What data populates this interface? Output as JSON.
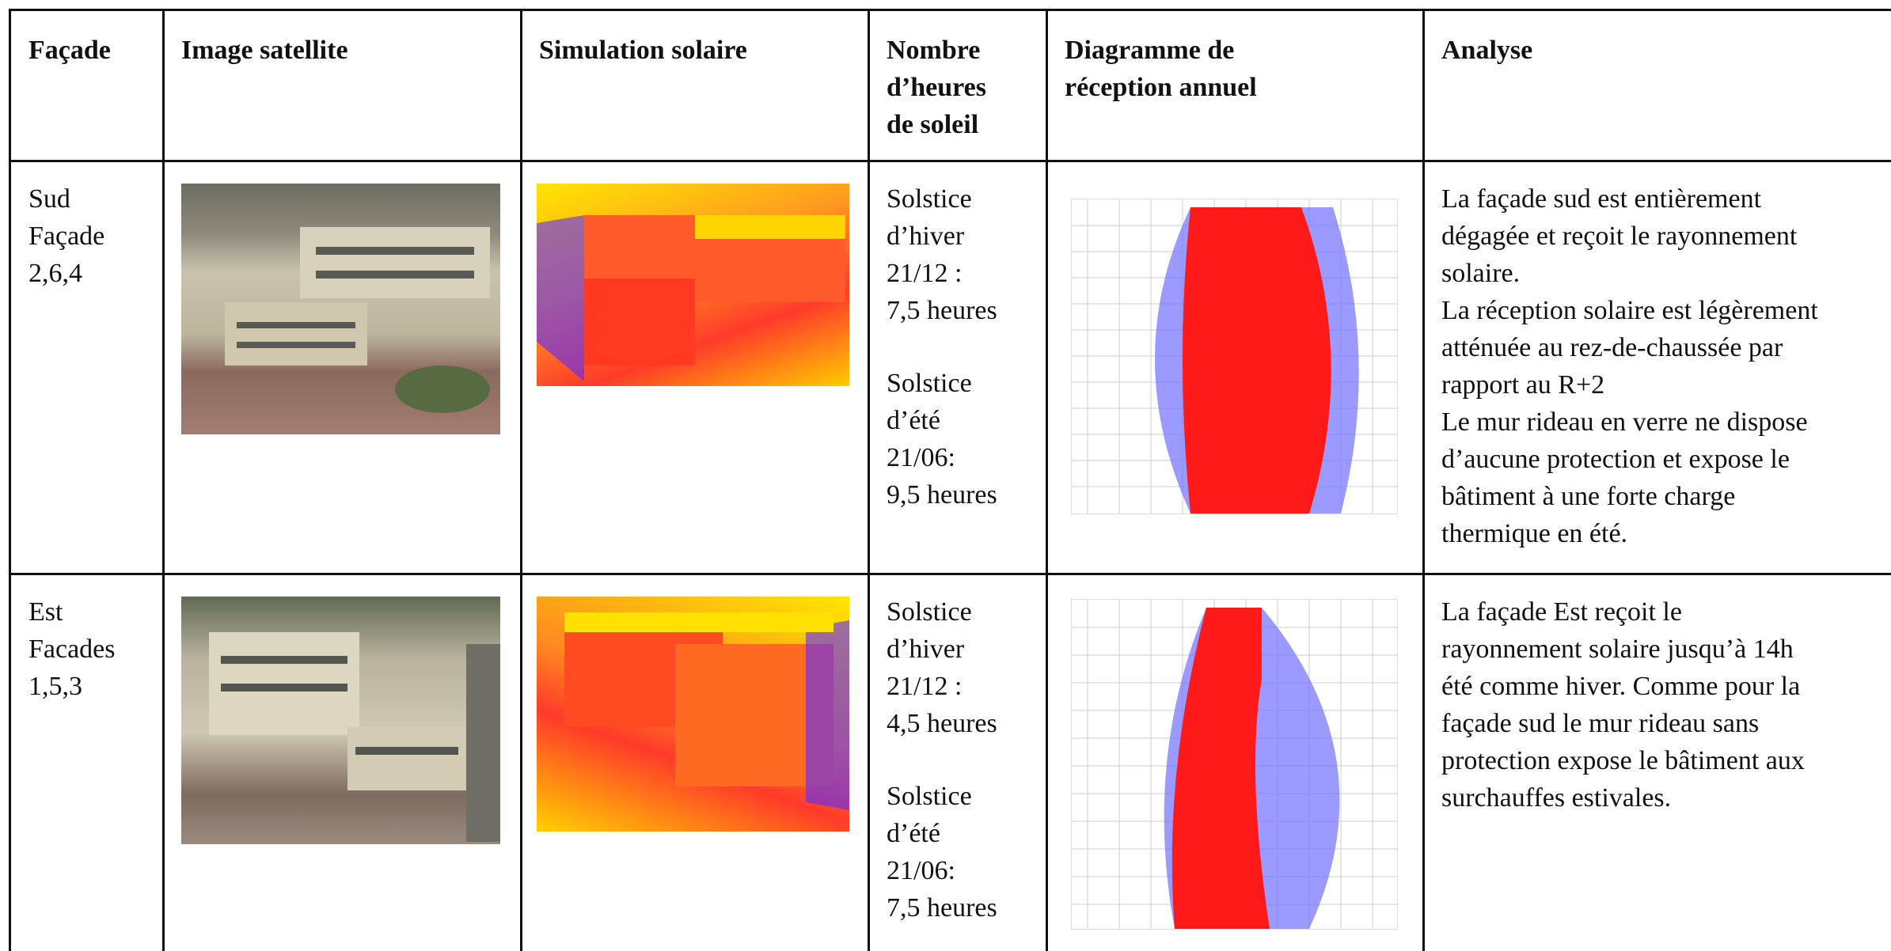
{
  "table": {
    "header": [
      [
        "Façade"
      ],
      [
        "Image satellite"
      ],
      [
        "Simulation solaire"
      ],
      [
        "Nombre",
        "d’heures",
        "de soleil"
      ],
      [
        "Diagramme de",
        "réception annuel"
      ],
      [
        "Analyse"
      ]
    ],
    "rows": [
      {
        "facade": [
          "Sud",
          "Façade",
          "2,6,4"
        ],
        "hours": [
          [
            "Solstice",
            "d’hiver",
            "21/12 :",
            "7,5 heures"
          ],
          [
            "Solstice",
            "d’été",
            "21/06:",
            "9,5 heures"
          ]
        ],
        "analysis": [
          "La façade sud est entièrement",
          "dégagée et reçoit le rayonnement",
          "solaire.",
          "La réception solaire est légèrement",
          "atténuée au rez-de-chaussée par",
          "rapport au R+2",
          "Le mur rideau en verre ne dispose",
          "d’aucune protection et expose le",
          "bâtiment à une forte charge",
          "thermique en été."
        ]
      },
      {
        "facade": [
          "Est",
          "Facades",
          "1,5,3"
        ],
        "hours": [
          [
            "Solstice",
            "d’hiver",
            "21/12 :",
            "4,5 heures"
          ],
          [
            "Solstice",
            "d’été",
            "21/06:",
            "7,5 heures"
          ]
        ],
        "analysis": [
          "La façade Est reçoit le",
          "rayonnement solaire jusqu’à 14h",
          "été comme hiver. Comme pour la",
          "façade sud le mur rideau sans",
          "protection expose le bâtiment aux",
          "surchauffes estivales."
        ]
      }
    ]
  }
}
